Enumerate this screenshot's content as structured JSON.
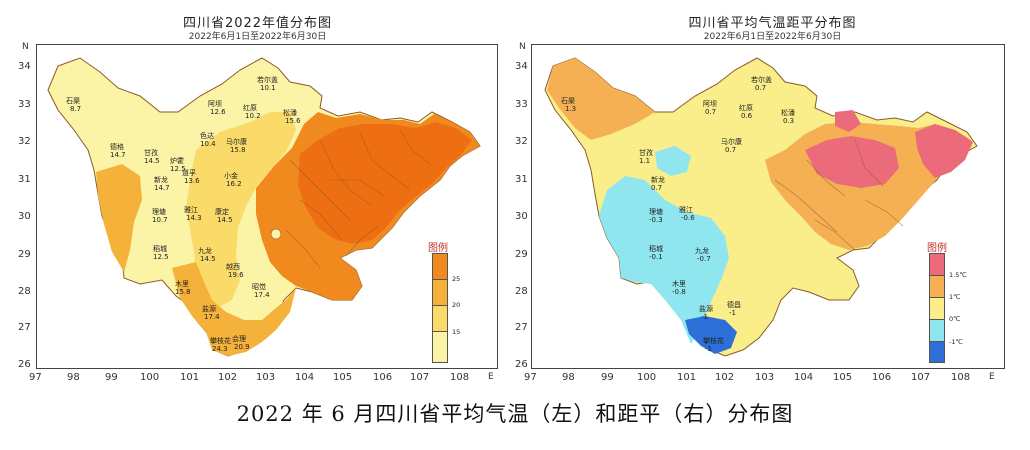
{
  "left_panel": {
    "title": "四川省2022年值分布图",
    "subtitle": "2022年6月1日至2022年6月30日",
    "x_ticks": [
      "97",
      "98",
      "99",
      "100",
      "101",
      "102",
      "103",
      "104",
      "105",
      "106",
      "107",
      "108"
    ],
    "x_unit": "E",
    "y_ticks": [
      "34",
      "33",
      "32",
      "31",
      "30",
      "29",
      "28",
      "27",
      "26"
    ],
    "y_unit": "N",
    "legend_title": "图例",
    "legend_labels": [
      "25",
      "20",
      "15"
    ],
    "legend_colors": [
      "#f08a1e",
      "#f5b23a",
      "#fadb6a",
      "#fbf3a6"
    ],
    "stations": [
      {
        "name": "若尔盖",
        "value": "10.1"
      },
      {
        "name": "石渠",
        "value": "8.7"
      },
      {
        "name": "阿坝",
        "value": "12.6"
      },
      {
        "name": "红原",
        "value": "10.2"
      },
      {
        "name": "松潘",
        "value": "15.6"
      },
      {
        "name": "甘孜",
        "value": "14.5"
      },
      {
        "name": "炉霍",
        "value": "12.5"
      },
      {
        "name": "马尔康",
        "value": "15.8"
      },
      {
        "name": "色达",
        "value": "10.4"
      },
      {
        "name": "德格",
        "value": "14.7"
      },
      {
        "name": "新龙",
        "value": "14.7"
      },
      {
        "name": "道孚",
        "value": "13.6"
      },
      {
        "name": "小金",
        "value": "16.2"
      },
      {
        "name": "理塘",
        "value": "10.7"
      },
      {
        "name": "雅江",
        "value": "14.3"
      },
      {
        "name": "康定",
        "value": "14.5"
      },
      {
        "name": "稻城",
        "value": "12.5"
      },
      {
        "name": "九龙",
        "value": "14.5"
      },
      {
        "name": "木里",
        "value": "15.8"
      },
      {
        "name": "盐源",
        "value": "17.4"
      },
      {
        "name": "攀枝花",
        "value": "24.3"
      },
      {
        "name": "会理",
        "value": "20.9"
      },
      {
        "name": "昭觉",
        "value": "17.4"
      },
      {
        "name": "越西",
        "value": "19.6"
      }
    ]
  },
  "right_panel": {
    "title": "四川省平均气温距平分布图",
    "subtitle": "2022年6月1日至2022年6月30日",
    "x_ticks": [
      "97",
      "98",
      "99",
      "100",
      "101",
      "102",
      "103",
      "104",
      "105",
      "106",
      "107",
      "108"
    ],
    "x_unit": "E",
    "y_ticks": [
      "34",
      "33",
      "32",
      "31",
      "30",
      "29",
      "28",
      "27",
      "26"
    ],
    "y_unit": "N",
    "legend_title": "图例",
    "legend_labels": [
      "1.5℃",
      "1℃",
      "0℃",
      "-1℃"
    ],
    "legend_colors": [
      "#ec6b7a",
      "#f5b054",
      "#f9ee8a",
      "#8fe6ef",
      "#2d6fd6"
    ],
    "stations": [
      {
        "name": "若尔盖",
        "value": "0.7"
      },
      {
        "name": "石渠",
        "value": "1.3"
      },
      {
        "name": "阿坝",
        "value": "0.7"
      },
      {
        "name": "红原",
        "value": "0.6"
      },
      {
        "name": "松潘",
        "value": "0.3"
      },
      {
        "name": "甘孜",
        "value": "1.1"
      },
      {
        "name": "马尔康",
        "value": "0.7"
      },
      {
        "name": "新龙",
        "value": "0.7"
      },
      {
        "name": "理塘",
        "value": "-0.3"
      },
      {
        "name": "雅江",
        "value": "-0.6"
      },
      {
        "name": "稻城",
        "value": "-0.1"
      },
      {
        "name": "九龙",
        "value": "-0.7"
      },
      {
        "name": "木里",
        "value": "-0.8"
      },
      {
        "name": "盐源",
        "value": "-1"
      },
      {
        "name": "攀枝花",
        "value": "-1"
      },
      {
        "name": "德昌",
        "value": "-1"
      }
    ]
  },
  "caption": "2022 年 6 月四川省平均气温（左）和距平（右）分布图"
}
